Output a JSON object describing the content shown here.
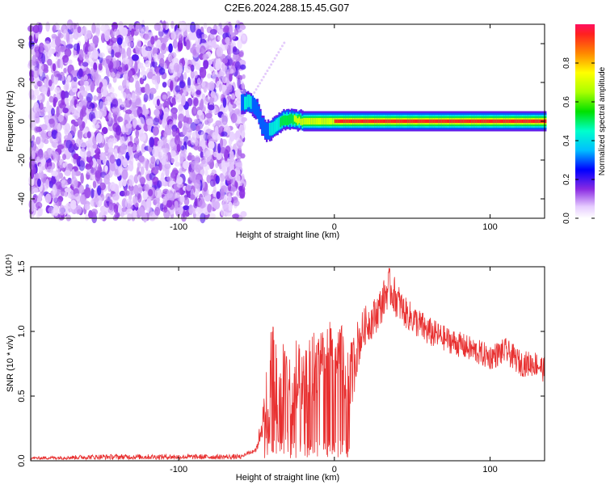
{
  "title": "C2E6.2024.288.15.45.G07",
  "colorbar": {
    "label": "Normalized spectral amplitude",
    "ticks": [
      "0.0",
      "0.2",
      "0.4",
      "0.6",
      "0.8"
    ],
    "tick_values": [
      0.0,
      0.2,
      0.4,
      0.6,
      0.8
    ]
  },
  "chart_data": [
    {
      "type": "heatmap",
      "xlabel": "Height of straight line (km)",
      "ylabel": "Frequency (Hz)",
      "xlim": [
        -195,
        135
      ],
      "ylim": [
        -50,
        50
      ],
      "xticks": [
        -100,
        0,
        100
      ],
      "xtick_labels": [
        "-100",
        "0",
        "100"
      ],
      "yticks": [
        -40,
        -20,
        0,
        20,
        40
      ],
      "ytick_labels": [
        "-40",
        "-20",
        "0",
        "20",
        "40"
      ],
      "zlim": [
        0,
        1
      ],
      "noise_region": {
        "x": [
          -195,
          -58
        ],
        "amplitude": [
          0.05,
          0.4
        ]
      },
      "signal_trace": {
        "x": [
          -60,
          -55,
          -50,
          -47,
          -44,
          -40,
          -36,
          -32,
          -28,
          -24,
          -20,
          -10,
          0,
          20,
          40,
          60,
          80,
          100,
          120,
          135
        ],
        "frequency": [
          9,
          10,
          6,
          -2,
          -5,
          -4,
          -1,
          1,
          1,
          0.5,
          0,
          0,
          0,
          0,
          0,
          0,
          0,
          0,
          0,
          0
        ],
        "amplitude": [
          0.35,
          0.4,
          0.3,
          0.3,
          0.35,
          0.4,
          0.45,
          0.55,
          0.6,
          0.7,
          0.8,
          0.85,
          0.9,
          0.9,
          0.92,
          0.95,
          0.95,
          0.95,
          0.95,
          0.95
        ]
      }
    },
    {
      "type": "line",
      "xlabel": "Height of straight line (km)",
      "ylabel": "SNR (10 * v/v)",
      "y_multiplier": "(x10⁴)",
      "xlim": [
        -195,
        135
      ],
      "ylim": [
        0,
        1.5
      ],
      "xticks": [
        -100,
        0,
        100
      ],
      "xtick_labels": [
        "-100",
        "0",
        "100"
      ],
      "yticks": [
        0.0,
        0.5,
        1.0,
        1.5
      ],
      "ytick_labels": [
        "0.0",
        "0.5",
        "1.0",
        "1.5"
      ],
      "series": [
        {
          "color": "#e83030",
          "x": [
            -195,
            -150,
            -100,
            -60,
            -50,
            -45,
            -42,
            -40,
            -38,
            -35,
            -32,
            -30,
            -28,
            -25,
            -20,
            -15,
            -10,
            -5,
            0,
            5,
            8,
            10,
            15,
            20,
            25,
            30,
            35,
            40,
            45,
            50,
            55,
            60,
            70,
            80,
            90,
            100,
            110,
            120,
            130,
            135
          ],
          "values": [
            0.02,
            0.03,
            0.03,
            0.03,
            0.08,
            0.3,
            0.5,
            0.8,
            0.6,
            0.4,
            0.7,
            0.5,
            0.4,
            0.6,
            0.5,
            0.7,
            0.8,
            0.9,
            0.85,
            0.85,
            0.5,
            0.6,
            0.9,
            1.05,
            1.1,
            1.2,
            1.35,
            1.25,
            1.15,
            1.1,
            1.05,
            1.0,
            0.95,
            0.9,
            0.85,
            0.8,
            0.85,
            0.75,
            0.75,
            0.7
          ],
          "noise_amplitude": [
            0.01,
            0.02,
            0.02,
            0.02,
            0.05,
            0.3,
            0.4,
            0.4,
            0.4,
            0.4,
            0.4,
            0.4,
            0.4,
            0.4,
            0.3,
            0.3,
            0.25,
            0.2,
            0.2,
            0.2,
            0.3,
            0.3,
            0.2,
            0.15,
            0.15,
            0.15,
            0.15,
            0.15,
            0.12,
            0.12,
            0.12,
            0.12,
            0.1,
            0.1,
            0.1,
            0.1,
            0.1,
            0.1,
            0.1,
            0.1
          ]
        }
      ]
    }
  ]
}
